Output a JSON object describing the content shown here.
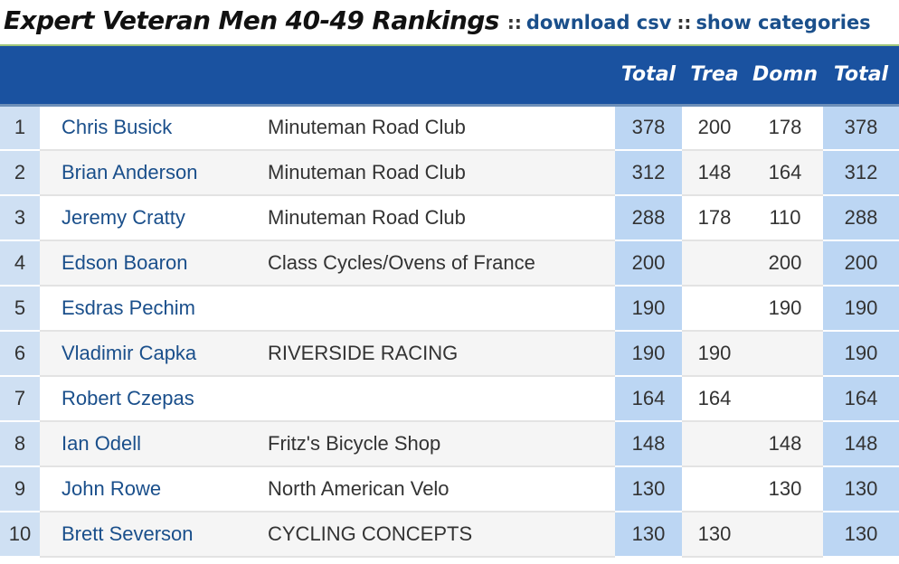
{
  "page": {
    "title": "Expert Veteran Men 40-49 Rankings",
    "separator": "::",
    "download_link": "download csv",
    "categories_link": "show categories"
  },
  "table": {
    "headers": [
      "",
      "",
      "",
      "Total",
      "Trea",
      "Domn",
      "Total"
    ],
    "rows": [
      {
        "place": "1",
        "name": "Chris Busick",
        "team": "Minuteman Road Club",
        "total": "378",
        "trea": "200",
        "domn": "178",
        "total2": "378"
      },
      {
        "place": "2",
        "name": "Brian Anderson",
        "team": "Minuteman Road Club",
        "total": "312",
        "trea": "148",
        "domn": "164",
        "total2": "312"
      },
      {
        "place": "3",
        "name": "Jeremy Cratty",
        "team": "Minuteman Road Club",
        "total": "288",
        "trea": "178",
        "domn": "110",
        "total2": "288"
      },
      {
        "place": "4",
        "name": "Edson Boaron",
        "team": "Class Cycles/Ovens of France",
        "total": "200",
        "trea": "",
        "domn": "200",
        "total2": "200"
      },
      {
        "place": "5",
        "name": "Esdras Pechim",
        "team": "",
        "total": "190",
        "trea": "",
        "domn": "190",
        "total2": "190"
      },
      {
        "place": "6",
        "name": "Vladimir Capka",
        "team": "RIVERSIDE RACING",
        "total": "190",
        "trea": "190",
        "domn": "",
        "total2": "190"
      },
      {
        "place": "7",
        "name": "Robert Czepas",
        "team": "",
        "total": "164",
        "trea": "164",
        "domn": "",
        "total2": "164"
      },
      {
        "place": "8",
        "name": "Ian Odell",
        "team": "Fritz's Bicycle Shop",
        "total": "148",
        "trea": "",
        "domn": "148",
        "total2": "148"
      },
      {
        "place": "9",
        "name": "John Rowe",
        "team": "North American Velo",
        "total": "130",
        "trea": "",
        "domn": "130",
        "total2": "130"
      },
      {
        "place": "10",
        "name": "Brett Severson",
        "team": "CYCLING CONCEPTS",
        "total": "130",
        "trea": "130",
        "domn": "",
        "total2": "130"
      }
    ]
  },
  "colors": {
    "header_bg": "#1a52a0",
    "link": "#1a4f8b",
    "place_bg": "#cfe0f3",
    "total_highlight": "#bcd6f3"
  }
}
